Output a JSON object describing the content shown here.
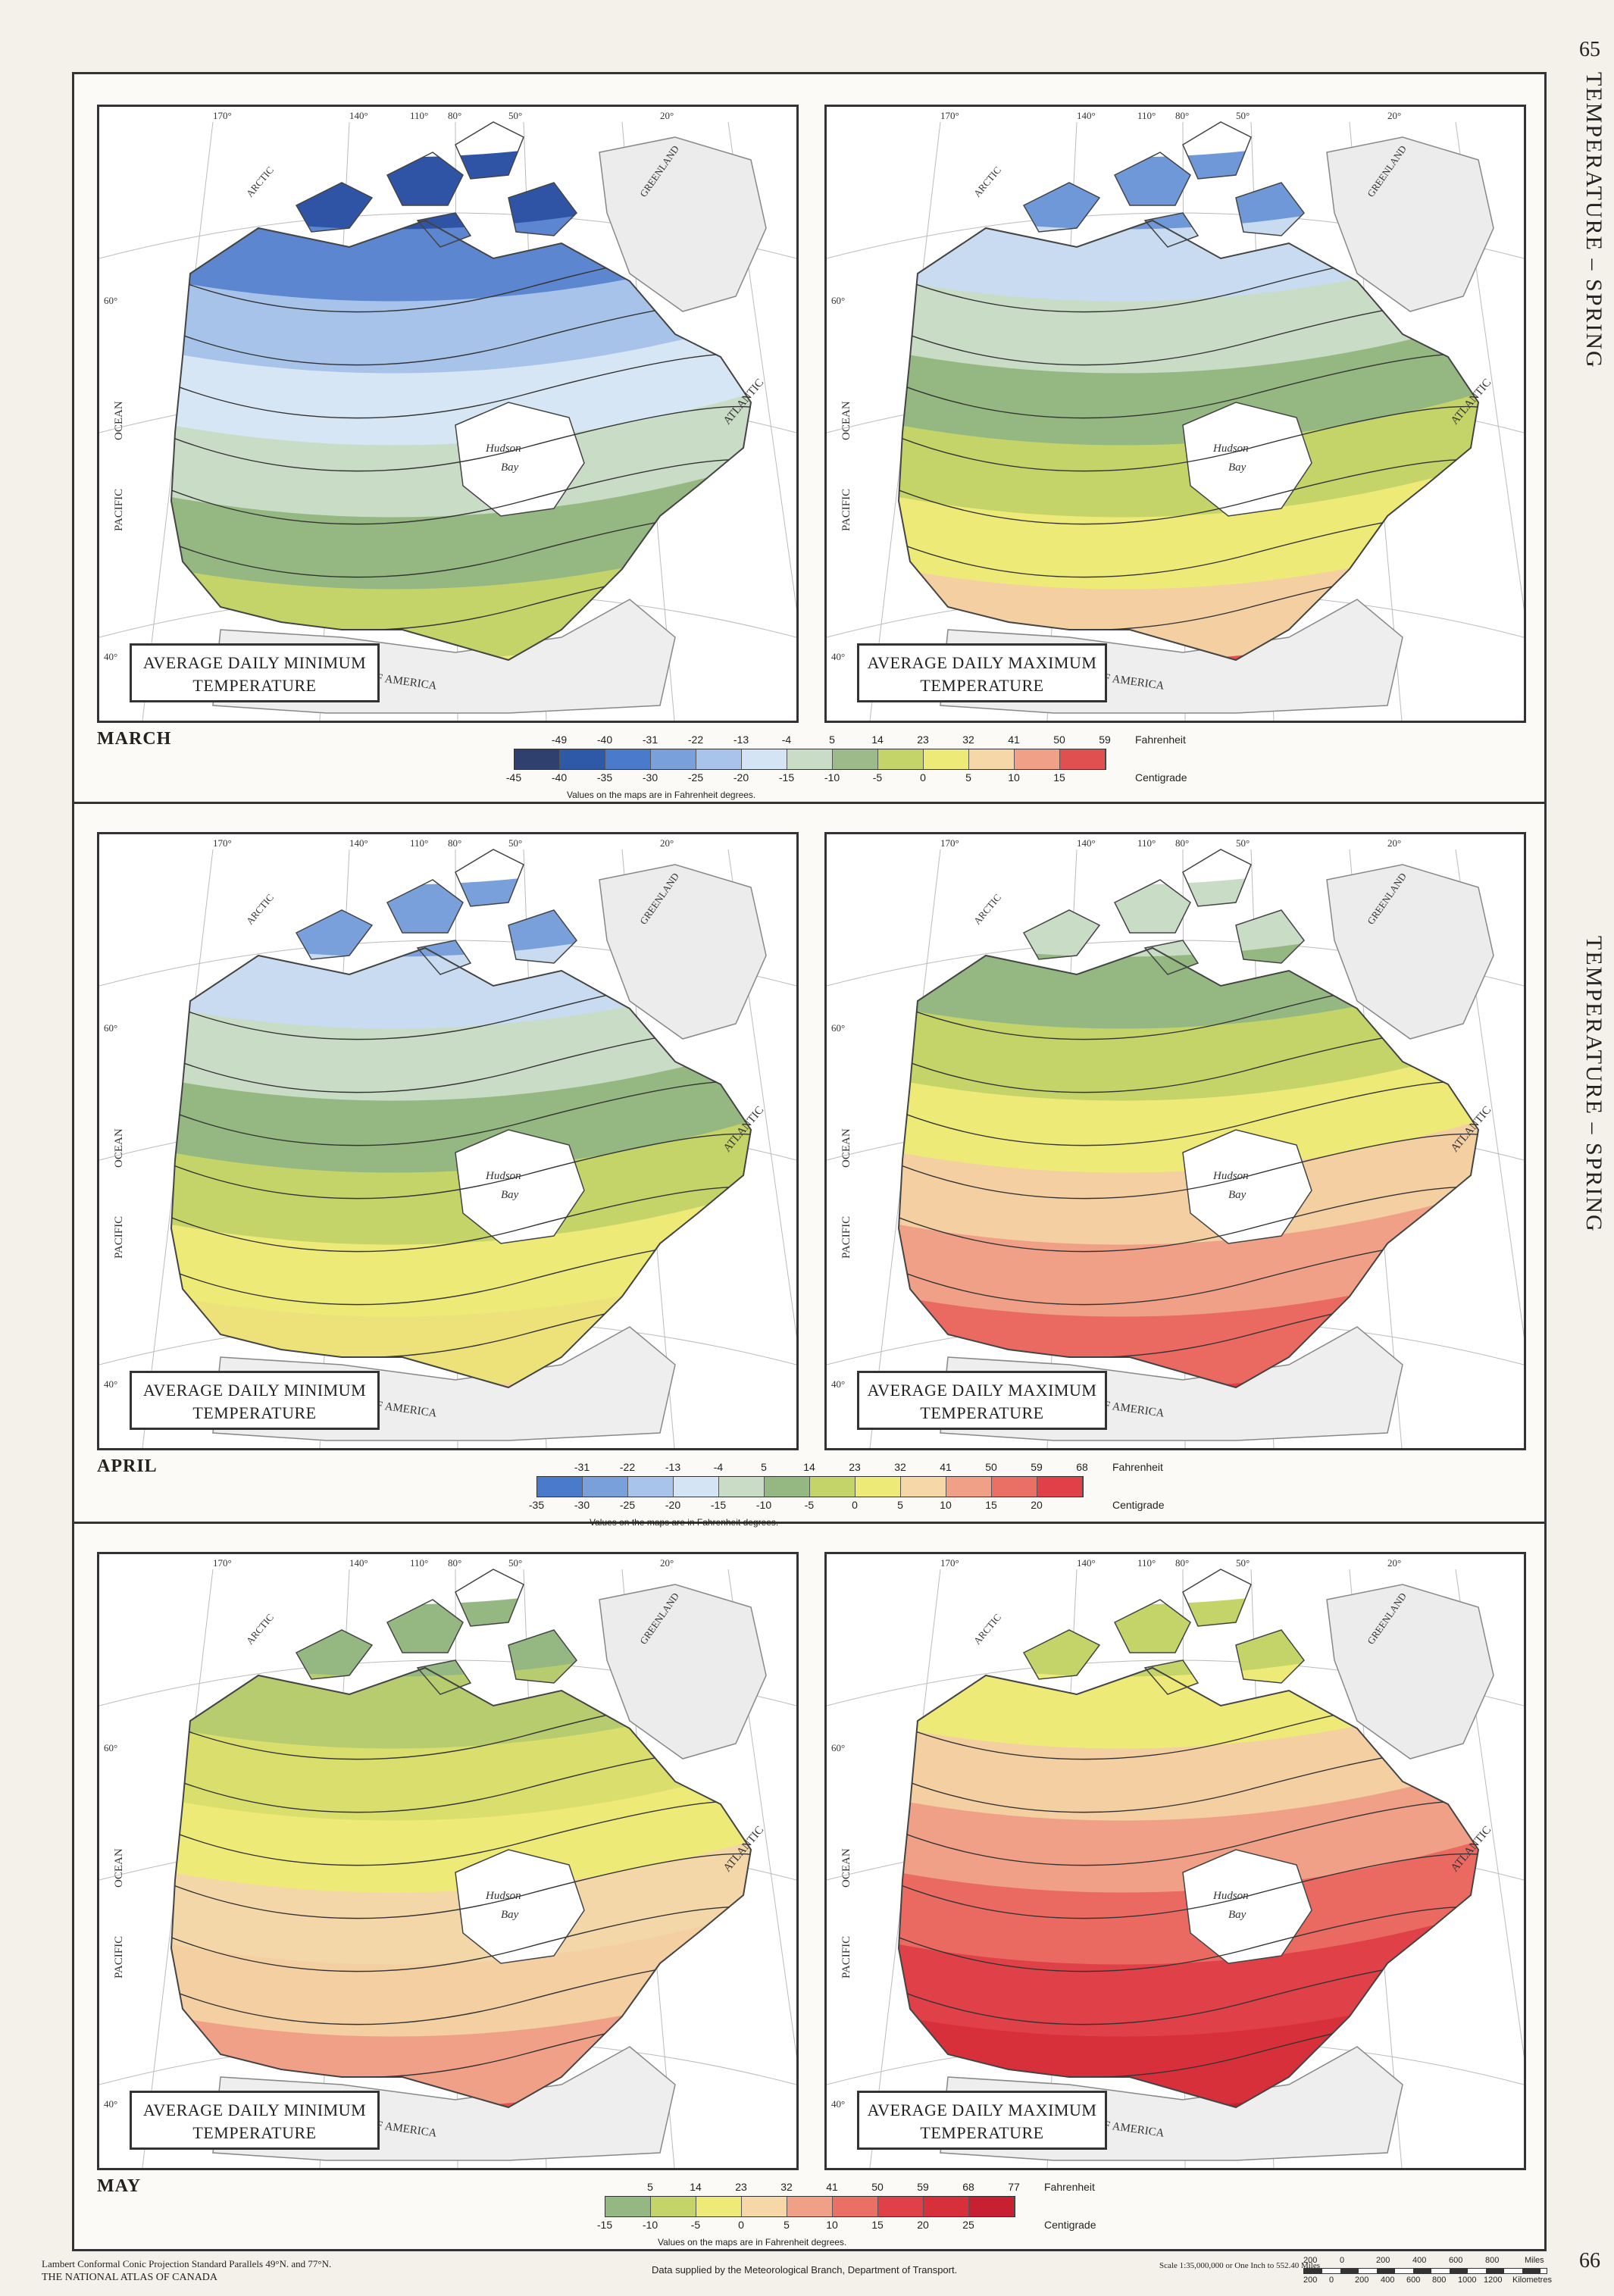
{
  "page": {
    "page_top": "65",
    "page_bottom": "66",
    "side_title_top": "TEMPERATURE – SPRING",
    "side_title_bottom": "TEMPERATURE – SPRING"
  },
  "map_labels": {
    "lon": [
      "170°",
      "140°",
      "110°",
      "80°",
      "50°",
      "20°"
    ],
    "lat": [
      "60°",
      "40°"
    ],
    "features": {
      "hudson": "Hudson",
      "bay": "Bay",
      "pacific": "PACIFIC",
      "ocean": "OCEAN",
      "atlantic": "ATLANTIC",
      "usa": "UNITED STATES OF AMERICA",
      "greenland": "GREENLAND",
      "arctic": "ARCTIC"
    }
  },
  "months": [
    {
      "month": "MARCH",
      "min_caption_1": "AVERAGE DAILY MINIMUM",
      "min_caption_2": "TEMPERATURE",
      "max_caption_1": "AVERAGE DAILY MAXIMUM",
      "max_caption_2": "TEMPERATURE",
      "fahrenheit": [
        "-49",
        "-40",
        "-31",
        "-22",
        "-13",
        "-4",
        "5",
        "14",
        "23",
        "32",
        "41",
        "50",
        "59"
      ],
      "centigrade": [
        "-45",
        "-40",
        "-35",
        "-30",
        "-25",
        "-20",
        "-15",
        "-10",
        "-5",
        "0",
        "5",
        "10",
        "15"
      ],
      "colors": [
        "#2f3f6e",
        "#2e58a8",
        "#4a7acc",
        "#7aa0dc",
        "#a8c4ea",
        "#d4e4f4",
        "#c9dcc6",
        "#9dbb8a",
        "#c4d468",
        "#eeea78",
        "#f6d7a8",
        "#f1a088",
        "#e05050"
      ],
      "f_label": "Fahrenheit",
      "c_label": "Centigrade",
      "note": "Values on the maps are in Fahrenheit degrees.",
      "min_palette": [
        "#2f54a6",
        "#5c86d0",
        "#a7c3ea",
        "#d6e6f5",
        "#c9dcc6",
        "#95b883",
        "#c4d468",
        "#eeea78"
      ],
      "max_palette": [
        "#6f98d8",
        "#c8dbf0",
        "#c9dcc6",
        "#95b883",
        "#c4d468",
        "#eeea78",
        "#f3cfa2",
        "#e05050"
      ]
    },
    {
      "month": "APRIL",
      "min_caption_1": "AVERAGE DAILY MINIMUM",
      "min_caption_2": "TEMPERATURE",
      "max_caption_1": "AVERAGE DAILY MAXIMUM",
      "max_caption_2": "TEMPERATURE",
      "fahrenheit": [
        "-31",
        "-22",
        "-13",
        "-4",
        "5",
        "14",
        "23",
        "32",
        "41",
        "50",
        "59",
        "68"
      ],
      "centigrade": [
        "-35",
        "-30",
        "-25",
        "-20",
        "-15",
        "-10",
        "-5",
        "0",
        "5",
        "10",
        "15",
        "20"
      ],
      "colors": [
        "#4a7acc",
        "#7aa0dc",
        "#a8c4ea",
        "#d4e4f4",
        "#c9dcc6",
        "#95b883",
        "#c4d468",
        "#eeea78",
        "#f6d7a8",
        "#f1a088",
        "#ea7066",
        "#e04048"
      ],
      "f_label": "Fahrenheit",
      "c_label": "Centigrade",
      "note": "Values on the maps are in Fahrenheit degrees.",
      "min_palette": [
        "#7aa0dc",
        "#c8dbf0",
        "#c9dcc6",
        "#95b883",
        "#c4d468",
        "#eeea78",
        "#ede27a",
        "#f3cfa2"
      ],
      "max_palette": [
        "#c9dcc6",
        "#95b883",
        "#c4d468",
        "#eeea78",
        "#f3cfa2",
        "#f1a088",
        "#ea6a62",
        "#e04048"
      ]
    },
    {
      "month": "MAY",
      "min_caption_1": "AVERAGE DAILY MINIMUM",
      "min_caption_2": "TEMPERATURE",
      "max_caption_1": "AVERAGE DAILY MAXIMUM",
      "max_caption_2": "TEMPERATURE",
      "fahrenheit": [
        "5",
        "14",
        "23",
        "32",
        "41",
        "50",
        "59",
        "68",
        "77"
      ],
      "centigrade": [
        "-15",
        "-10",
        "-5",
        "0",
        "5",
        "10",
        "15",
        "20",
        "25"
      ],
      "colors": [
        "#95b883",
        "#c4d468",
        "#eeea78",
        "#f6d7a8",
        "#f1a088",
        "#ea7066",
        "#e04048",
        "#d8303a",
        "#c82030"
      ],
      "f_label": "Fahrenheit",
      "c_label": "Centigrade",
      "note": "Values on the maps are in Fahrenheit degrees.",
      "min_palette": [
        "#95b883",
        "#b7cc6e",
        "#d9de6c",
        "#eeea78",
        "#f3d7a8",
        "#f3cfa2",
        "#f1a088",
        "#e05050"
      ],
      "max_palette": [
        "#c4d468",
        "#eeea78",
        "#f3cfa2",
        "#f1a088",
        "#ea6a62",
        "#e04048",
        "#d8303a",
        "#c82030"
      ]
    }
  ],
  "footer": {
    "projection": "Lambert Conformal Conic Projection Standard Parallels 49°N. and 77°N.",
    "atlas": "THE NATIONAL ATLAS OF CANADA",
    "source": "Data supplied by the Meteorological Branch, Department of Transport.",
    "scale": "Scale 1:35,000,000 or One Inch to 552.40 Miles",
    "miles_label": "Miles",
    "km_label": "Kilometres",
    "miles": [
      "200",
      "0",
      "200",
      "400",
      "600",
      "800"
    ],
    "km": [
      "200",
      "0",
      "200",
      "400",
      "600",
      "800",
      "1000",
      "1200"
    ]
  }
}
